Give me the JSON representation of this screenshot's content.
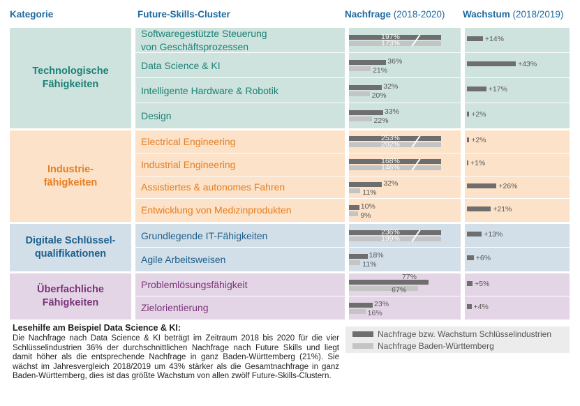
{
  "headers": {
    "kategorie": "Kategorie",
    "cluster": "Future-Skills-Cluster",
    "nachfrage": "Nachfrage",
    "nachfrage_period": "(2018-2020)",
    "wachstum": "Wachstum",
    "wachstum_period": "(2018/2019)"
  },
  "colors": {
    "tech_bg": "#cfe3de",
    "tech_text": "#1a8076",
    "ind_bg": "#fbe2c8",
    "ind_text": "#e67e22",
    "dig_bg": "#d2dfe9",
    "dig_text": "#1d5f8c",
    "ueb_bg": "#e4d5e6",
    "ueb_text": "#7a3478",
    "dark_bar": "#6e6e6e",
    "light_bar": "#c4c4c4"
  },
  "chart_data": {
    "type": "bar",
    "series": [
      {
        "name": "Nachfrage bzw. Wachstum Schlüsselindustrien"
      },
      {
        "name": "Nachfrage Baden-Württemberg"
      }
    ],
    "categories": [
      {
        "name": "Technologische Fähigkeiten",
        "lines": [
          "Technologische",
          "Fähigkeiten"
        ],
        "color_key": "tech",
        "clusters": [
          {
            "lines": [
              "Softwaregestützte Steuerung",
              "von Geschäftsprozessen"
            ],
            "nachfrage_industrie": 197,
            "nachfrage_bw": 173,
            "wachstum": 14,
            "nachfrage_industrie_label": "197%",
            "nachfrage_bw_label": "173%",
            "wachstum_label": "+14%"
          },
          {
            "lines": [
              "Data Science & KI"
            ],
            "nachfrage_industrie": 36,
            "nachfrage_bw": 21,
            "wachstum": 43,
            "nachfrage_industrie_label": "36%",
            "nachfrage_bw_label": "21%",
            "wachstum_label": "+43%"
          },
          {
            "lines": [
              "Intelligente Hardware & Robotik"
            ],
            "nachfrage_industrie": 32,
            "nachfrage_bw": 20,
            "wachstum": 17,
            "nachfrage_industrie_label": "32%",
            "nachfrage_bw_label": "20%",
            "wachstum_label": "+17%"
          },
          {
            "lines": [
              "Design"
            ],
            "nachfrage_industrie": 33,
            "nachfrage_bw": 22,
            "wachstum": 2,
            "nachfrage_industrie_label": "33%",
            "nachfrage_bw_label": "22%",
            "wachstum_label": "+2%"
          }
        ]
      },
      {
        "name": "Industrie-fähigkeiten",
        "lines": [
          "Industrie-",
          "fähigkeiten"
        ],
        "color_key": "ind",
        "clusters": [
          {
            "lines": [
              "Electrical Engineering"
            ],
            "nachfrage_industrie": 253,
            "nachfrage_bw": 202,
            "wachstum": 2,
            "nachfrage_industrie_label": "253%",
            "nachfrage_bw_label": "202%",
            "wachstum_label": "+2%"
          },
          {
            "lines": [
              "Industrial Engineering"
            ],
            "nachfrage_industrie": 168,
            "nachfrage_bw": 146,
            "wachstum": 1,
            "nachfrage_industrie_label": "168%",
            "nachfrage_bw_label": "146%",
            "wachstum_label": "+1%"
          },
          {
            "lines": [
              "Assistiertes & autonomes Fahren"
            ],
            "nachfrage_industrie": 32,
            "nachfrage_bw": 11,
            "wachstum": 26,
            "nachfrage_industrie_label": "32%",
            "nachfrage_bw_label": "11%",
            "wachstum_label": "+26%"
          },
          {
            "lines": [
              "Entwicklung von Medizinprodukten"
            ],
            "nachfrage_industrie": 10,
            "nachfrage_bw": 9,
            "wachstum": 21,
            "nachfrage_industrie_label": "10%",
            "nachfrage_bw_label": "9%",
            "wachstum_label": "+21%"
          }
        ]
      },
      {
        "name": "Digitale Schlüssel-qualifikationen",
        "lines": [
          "Digitale Schlüssel-",
          "qualifikationen"
        ],
        "color_key": "dig",
        "clusters": [
          {
            "lines": [
              "Grundlegende IT-Fähigkeiten"
            ],
            "nachfrage_industrie": 236,
            "nachfrage_bw": 199,
            "wachstum": 13,
            "nachfrage_industrie_label": "236%",
            "nachfrage_bw_label": "199%",
            "wachstum_label": "+13%"
          },
          {
            "lines": [
              "Agile Arbeitsweisen"
            ],
            "nachfrage_industrie": 18,
            "nachfrage_bw": 11,
            "wachstum": 6,
            "nachfrage_industrie_label": "18%",
            "nachfrage_bw_label": "11%",
            "wachstum_label": "+6%"
          }
        ]
      },
      {
        "name": "Überfachliche Fähigkeiten",
        "lines": [
          "Überfachliche",
          "Fähigkeiten"
        ],
        "color_key": "ueb",
        "clusters": [
          {
            "lines": [
              "Problemlösungsfähigkeit"
            ],
            "nachfrage_industrie": 77,
            "nachfrage_bw": 67,
            "wachstum": 5,
            "nachfrage_industrie_label": "77%",
            "nachfrage_bw_label": "67%",
            "wachstum_label": "+5%"
          },
          {
            "lines": [
              "Zielorientierung"
            ],
            "nachfrage_industrie": 23,
            "nachfrage_bw": 16,
            "wachstum": 4,
            "nachfrage_industrie_label": "23%",
            "nachfrage_bw_label": "16%",
            "wachstum_label": "+4%"
          }
        ]
      }
    ],
    "axis_break": 100
  },
  "legend": {
    "dark": "Nachfrage bzw. Wachstum Schlüsselindustrien",
    "light": "Nachfrage Baden-Württemberg"
  },
  "note": {
    "title": "Lesehilfe am Beispiel Data Science & KI:",
    "text": "Die Nachfrage nach Data Science & KI beträgt im Zeitraum 2018 bis 2020 für die vier Schlüsselindustrien 36% der durchschnittlichen Nachfrage nach Future Skills und liegt damit höher als die entsprechende Nachfrage in ganz Baden-Württemberg (21%). Sie wächst im Jahresvergleich 2018/2019 um 43% stärker als die Gesamtnachfrage in ganz Baden-Württemberg, dies ist das größte Wachstum von allen zwölf Future-Skills-Clustern."
  }
}
